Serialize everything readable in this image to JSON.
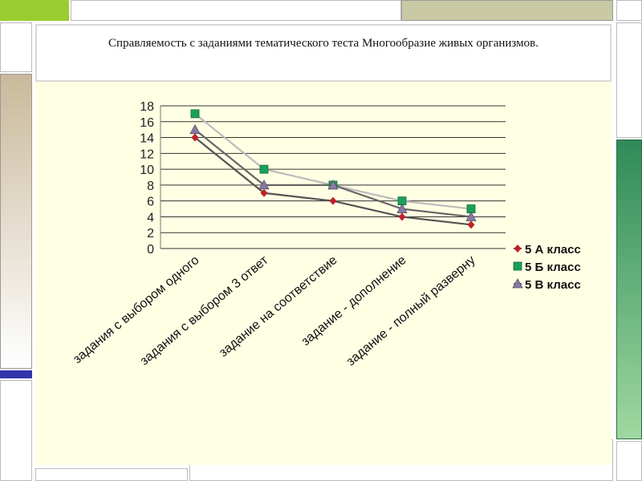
{
  "slide": {
    "title": "Справляемость  с заданиями тематического теста  Многообразие живых организмов."
  },
  "colors": {
    "plot_bg": "#ffffe4",
    "grid": "#333333",
    "accent_green": "#9acd32",
    "accent_tan": "#c9b99a",
    "accent_blue": "#3333aa",
    "accent_darkgreen": "#2e8b57"
  },
  "chart_data": {
    "type": "line",
    "categories": [
      "задания с выбором одного",
      "задания с выбором 3 ответ",
      "задание на соответствие",
      "задание - дополнение",
      "задание - полный разверну"
    ],
    "series": [
      {
        "name": "5 А класс",
        "values": [
          14,
          7,
          6,
          4,
          3
        ],
        "color": "#c0202a",
        "line_color": "#555555",
        "marker": "diamond"
      },
      {
        "name": "5 Б класс",
        "values": [
          17,
          10,
          8,
          6,
          5
        ],
        "color": "#1aa05a",
        "line_color": "#bbbbbb",
        "marker": "square"
      },
      {
        "name": "5 В класс",
        "values": [
          15,
          8,
          8,
          5,
          4
        ],
        "color": "#8878a8",
        "line_color": "#666666",
        "marker": "triangle"
      }
    ],
    "yticks": [
      0,
      2,
      4,
      6,
      8,
      10,
      12,
      14,
      16,
      18
    ],
    "ylim": [
      0,
      18
    ],
    "grid": true,
    "legend_position": "right"
  }
}
